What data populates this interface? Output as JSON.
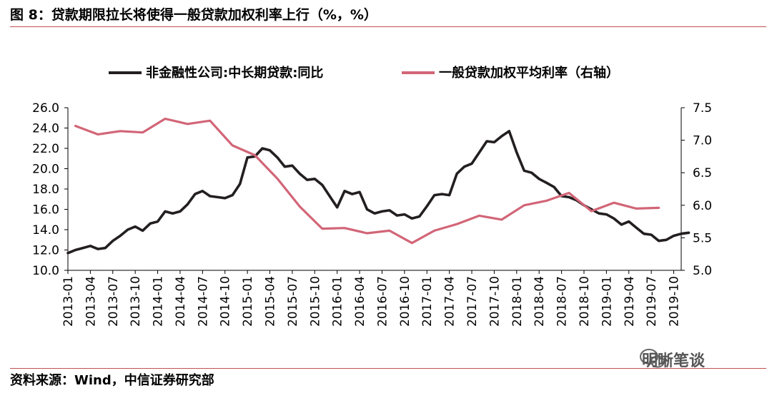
{
  "title": "图 8：贷款期限拉长将使得一般贷款加权利率上行（%，%）",
  "source": "资料来源：Wind，中信证券研究部",
  "watermark": "明晰笔谈",
  "chart_data": {
    "type": "line",
    "title": "图 8：贷款期限拉长将使得一般贷款加权利率上行（%，%）",
    "x_labels": [
      "2013-01",
      "2013-04",
      "2013-07",
      "2013-10",
      "2014-01",
      "2014-04",
      "2014-07",
      "2014-10",
      "2015-01",
      "2015-04",
      "2015-07",
      "2015-10",
      "2016-01",
      "2016-04",
      "2016-07",
      "2016-10",
      "2017-01",
      "2017-04",
      "2017-07",
      "2017-10",
      "2018-01",
      "2018-04",
      "2018-07",
      "2018-10",
      "2019-01",
      "2019-04",
      "2019-07",
      "2019-10"
    ],
    "y_left": {
      "min": 10.0,
      "max": 26.0,
      "step": 2.0,
      "ticks": [
        "10.0",
        "12.0",
        "14.0",
        "16.0",
        "18.0",
        "20.0",
        "22.0",
        "24.0",
        "26.0"
      ]
    },
    "y_right": {
      "min": 5.0,
      "max": 7.5,
      "step": 0.5,
      "ticks": [
        "5.0",
        "5.5",
        "6.0",
        "6.5",
        "7.0",
        "7.5"
      ]
    },
    "legend": {
      "position": "top"
    },
    "series": [
      {
        "name": "非金融性公司:中长期贷款:同比",
        "axis": "left",
        "color": "#231f20",
        "x_start": "2013-01",
        "frequency": "monthly",
        "values": [
          11.7,
          12.0,
          12.2,
          12.4,
          12.1,
          12.2,
          12.9,
          13.4,
          14.0,
          14.3,
          13.9,
          14.6,
          14.8,
          15.8,
          15.6,
          15.8,
          16.5,
          17.5,
          17.8,
          17.3,
          17.2,
          17.1,
          17.4,
          18.5,
          21.1,
          21.2,
          22.0,
          21.8,
          21.1,
          20.2,
          20.3,
          19.5,
          18.9,
          19.0,
          18.4,
          17.3,
          16.2,
          17.8,
          17.5,
          17.7,
          16.0,
          15.6,
          15.8,
          15.9,
          15.4,
          15.5,
          15.1,
          15.3,
          16.3,
          17.4,
          17.5,
          17.4,
          19.5,
          20.2,
          20.5,
          21.6,
          22.7,
          22.6,
          23.2,
          23.7,
          21.6,
          19.8,
          19.6,
          19.0,
          18.6,
          18.2,
          17.3,
          17.2,
          16.9,
          16.4,
          16.0,
          15.6,
          15.5,
          15.1,
          14.5,
          14.8,
          14.2,
          13.6,
          13.5,
          12.9,
          13.0,
          13.4,
          13.6,
          13.7
        ]
      },
      {
        "name": "一般贷款加权平均利率（右轴）",
        "axis": "right",
        "color": "#d26577",
        "x_start": "2013-01",
        "frequency": "quarterly",
        "values": [
          7.22,
          7.09,
          7.14,
          7.12,
          7.33,
          7.25,
          7.3,
          6.92,
          6.77,
          6.41,
          5.98,
          5.64,
          5.65,
          5.57,
          5.61,
          5.42,
          5.61,
          5.71,
          5.84,
          5.78,
          6.0,
          6.07,
          6.19,
          5.91,
          6.04,
          5.95,
          5.96
        ]
      }
    ]
  }
}
